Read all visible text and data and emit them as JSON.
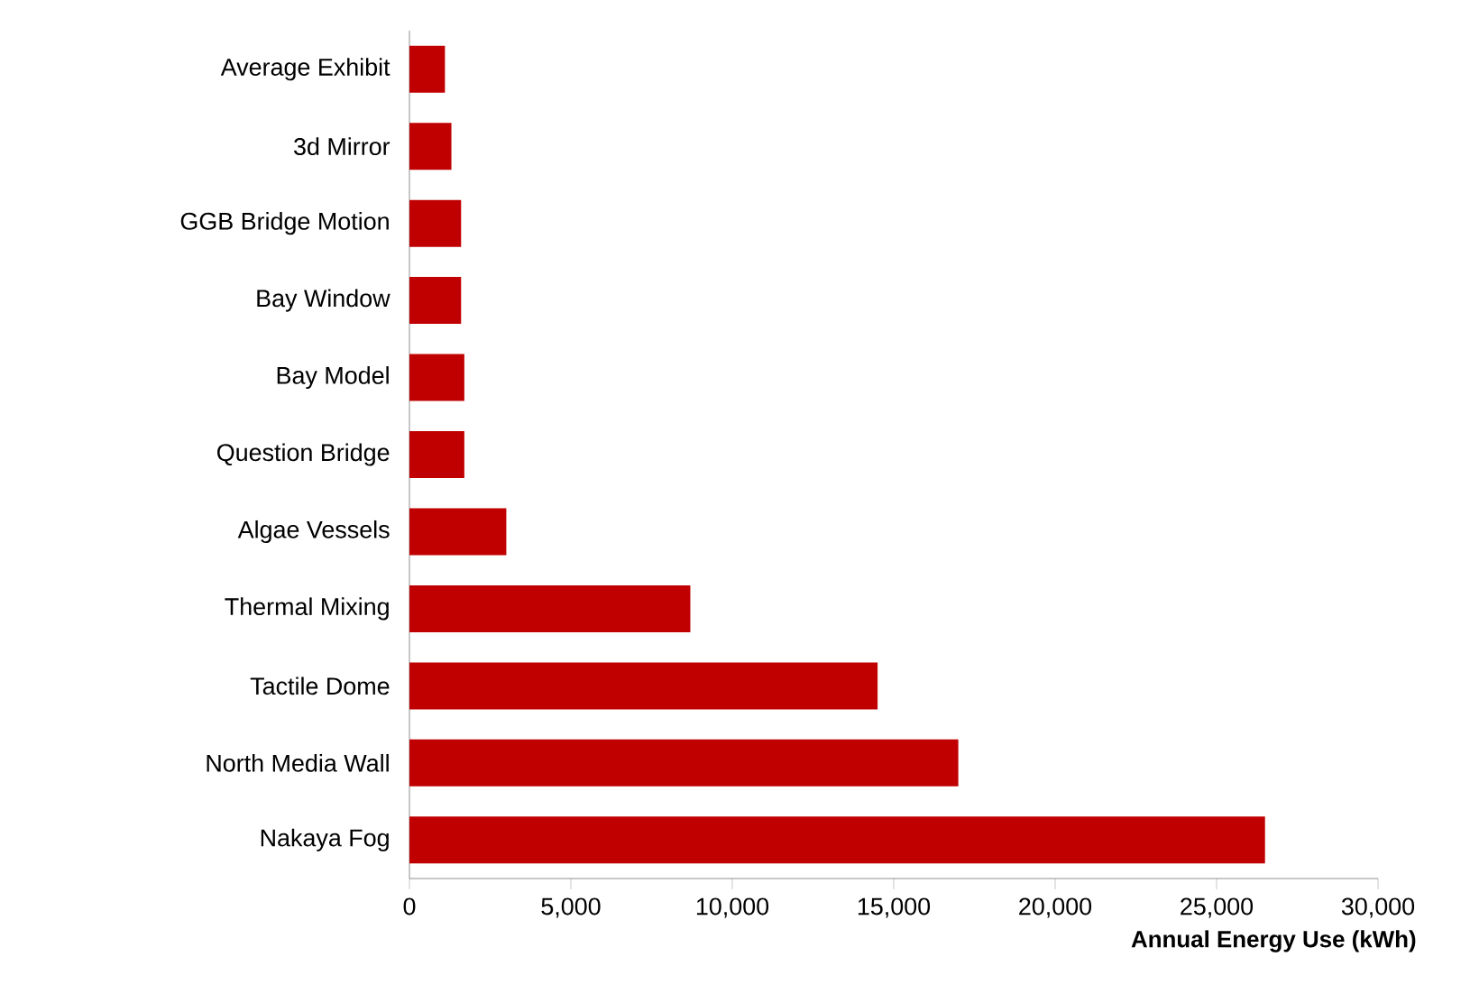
{
  "chart_data": {
    "type": "bar",
    "orientation": "horizontal",
    "xlabel": "Annual Energy Use (kWh)",
    "categories": [
      "Average Exhibit",
      "3d Mirror",
      "GGB Bridge Motion",
      "Bay Window",
      "Bay Model",
      "Question Bridge",
      "Algae Vessels",
      "Thermal Mixing",
      "Tactile Dome",
      "North Media Wall",
      "Nakaya Fog"
    ],
    "values": [
      1100,
      1300,
      1600,
      1600,
      1700,
      1700,
      3000,
      8700,
      14500,
      17000,
      26500
    ],
    "color": "#c00000",
    "xlim": [
      0,
      30000
    ],
    "xticks": [
      0,
      {
        "value": 5000,
        "label": "5,000"
      },
      {
        "value": 10000,
        "label": "10,000"
      },
      {
        "value": 15000,
        "label": "15,000"
      },
      {
        "value": 20000,
        "label": "20,000"
      },
      {
        "value": 25000,
        "label": "25,000"
      },
      {
        "value": 30000,
        "label": "30,000"
      }
    ],
    "grid": false
  }
}
